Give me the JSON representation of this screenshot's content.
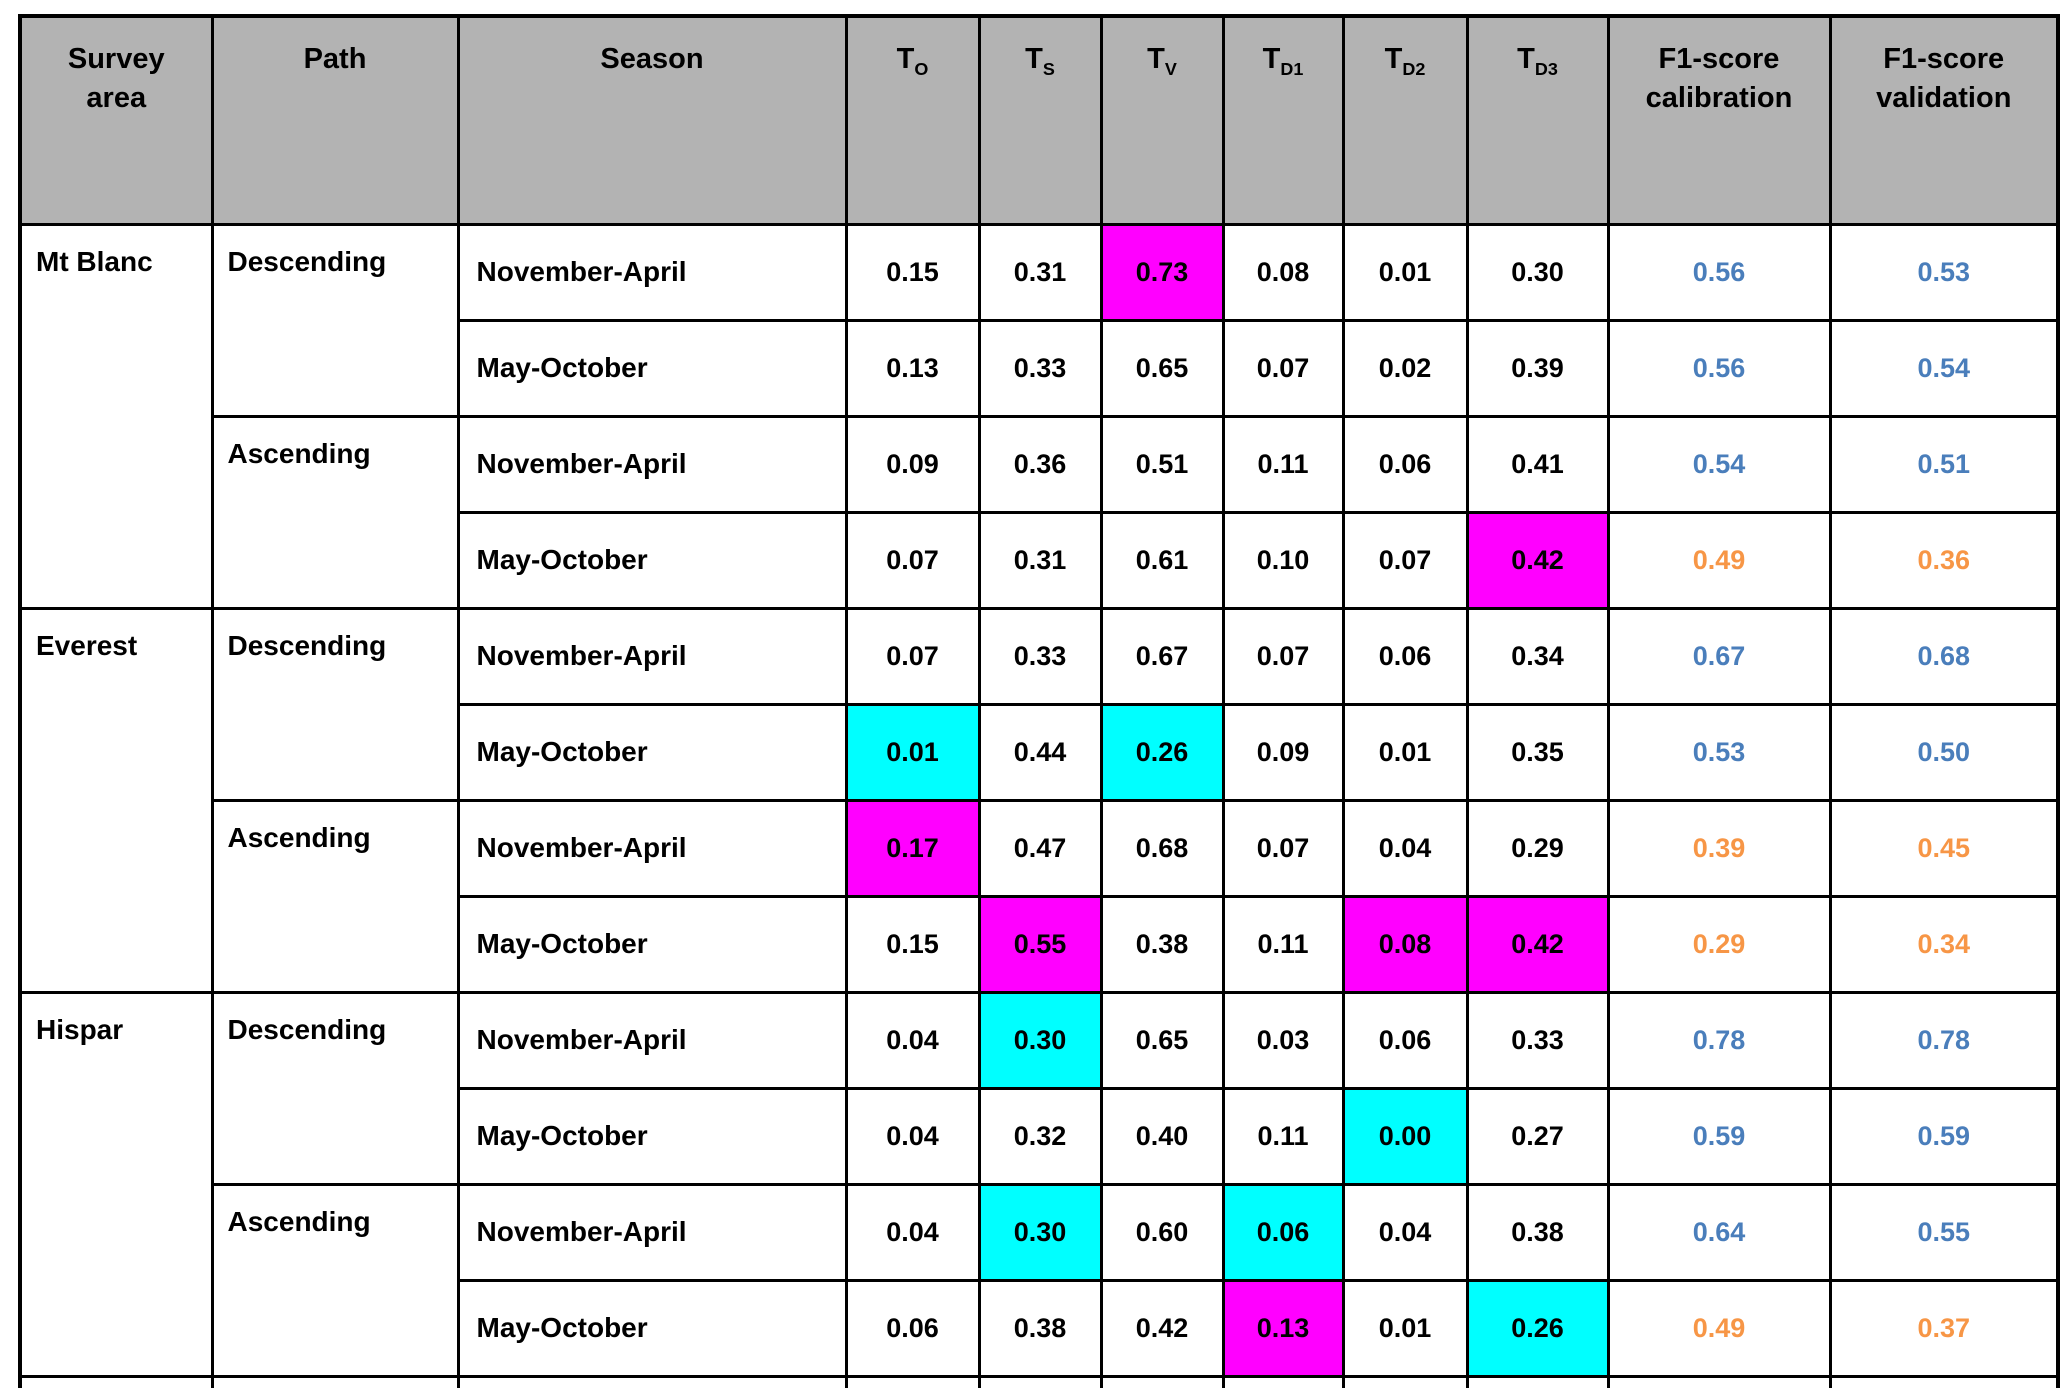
{
  "colors": {
    "header_bg": "#b3b3b3",
    "border": "#000000",
    "magenta_highlight": "#ff00ff",
    "cyan_highlight": "#00ffff",
    "f1_blue": "#4a7ebb",
    "f1_orange": "#f79646"
  },
  "table": {
    "columns": [
      {
        "name": "survey-area",
        "label": "Survey area"
      },
      {
        "name": "path",
        "label": "Path"
      },
      {
        "name": "season",
        "label": "Season"
      },
      {
        "name": "t-o",
        "base": "T",
        "sub": "O"
      },
      {
        "name": "t-s",
        "base": "T",
        "sub": "S"
      },
      {
        "name": "t-v",
        "base": "T",
        "sub": "V"
      },
      {
        "name": "t-d1",
        "base": "T",
        "sub": "D1"
      },
      {
        "name": "t-d2",
        "base": "T",
        "sub": "D2"
      },
      {
        "name": "t-d3",
        "base": "T",
        "sub": "D3"
      },
      {
        "name": "f1-calibration",
        "label": "F1-score calibration"
      },
      {
        "name": "f1-validation",
        "label": "F1-score validation"
      }
    ],
    "rows": [
      {
        "area": "Mt Blanc",
        "area_span": 4,
        "path": "Descending",
        "path_span": 2,
        "season": "November-April",
        "values": [
          "0.15",
          "0.31",
          "0.73",
          "0.08",
          "0.01",
          "0.30"
        ],
        "highlights": [
          null,
          null,
          "magenta",
          null,
          null,
          null
        ],
        "f1_cal": "0.56",
        "f1_val": "0.53",
        "f1_color": "blue"
      },
      {
        "season": "May-October",
        "values": [
          "0.13",
          "0.33",
          "0.65",
          "0.07",
          "0.02",
          "0.39"
        ],
        "highlights": [
          null,
          null,
          null,
          null,
          null,
          null
        ],
        "f1_cal": "0.56",
        "f1_val": "0.54",
        "f1_color": "blue"
      },
      {
        "path": "Ascending",
        "path_span": 2,
        "season": "November-April",
        "values": [
          "0.09",
          "0.36",
          "0.51",
          "0.11",
          "0.06",
          "0.41"
        ],
        "highlights": [
          null,
          null,
          null,
          null,
          null,
          null
        ],
        "f1_cal": "0.54",
        "f1_val": "0.51",
        "f1_color": "blue"
      },
      {
        "season": "May-October",
        "values": [
          "0.07",
          "0.31",
          "0.61",
          "0.10",
          "0.07",
          "0.42"
        ],
        "highlights": [
          null,
          null,
          null,
          null,
          null,
          "magenta"
        ],
        "f1_cal": "0.49",
        "f1_val": "0.36",
        "f1_color": "orange"
      },
      {
        "area": "Everest",
        "area_span": 4,
        "path": "Descending",
        "path_span": 2,
        "season": "November-April",
        "values": [
          "0.07",
          "0.33",
          "0.67",
          "0.07",
          "0.06",
          "0.34"
        ],
        "highlights": [
          null,
          null,
          null,
          null,
          null,
          null
        ],
        "f1_cal": "0.67",
        "f1_val": "0.68",
        "f1_color": "blue"
      },
      {
        "season": "May-October",
        "values": [
          "0.01",
          "0.44",
          "0.26",
          "0.09",
          "0.01",
          "0.35"
        ],
        "highlights": [
          "cyan",
          null,
          "cyan",
          null,
          null,
          null
        ],
        "f1_cal": "0.53",
        "f1_val": "0.50",
        "f1_color": "blue"
      },
      {
        "path": "Ascending",
        "path_span": 2,
        "season": "November-April",
        "values": [
          "0.17",
          "0.47",
          "0.68",
          "0.07",
          "0.04",
          "0.29"
        ],
        "highlights": [
          "magenta",
          null,
          null,
          null,
          null,
          null
        ],
        "f1_cal": "0.39",
        "f1_val": "0.45",
        "f1_color": "orange"
      },
      {
        "season": "May-October",
        "values": [
          "0.15",
          "0.55",
          "0.38",
          "0.11",
          "0.08",
          "0.42"
        ],
        "highlights": [
          null,
          "magenta",
          null,
          null,
          "magenta",
          "magenta"
        ],
        "f1_cal": "0.29",
        "f1_val": "0.34",
        "f1_color": "orange"
      },
      {
        "area": "Hispar",
        "area_span": 4,
        "path": "Descending",
        "path_span": 2,
        "season": "November-April",
        "values": [
          "0.04",
          "0.30",
          "0.65",
          "0.03",
          "0.06",
          "0.33"
        ],
        "highlights": [
          null,
          "cyan",
          null,
          null,
          null,
          null
        ],
        "f1_cal": "0.78",
        "f1_val": "0.78",
        "f1_color": "blue"
      },
      {
        "season": "May-October",
        "values": [
          "0.04",
          "0.32",
          "0.40",
          "0.11",
          "0.00",
          "0.27"
        ],
        "highlights": [
          null,
          null,
          null,
          null,
          "cyan",
          null
        ],
        "f1_cal": "0.59",
        "f1_val": "0.59",
        "f1_color": "blue"
      },
      {
        "path": "Ascending",
        "path_span": 2,
        "season": "November-April",
        "values": [
          "0.04",
          "0.30",
          "0.60",
          "0.06",
          "0.04",
          "0.38"
        ],
        "highlights": [
          null,
          "cyan",
          null,
          "cyan",
          null,
          null
        ],
        "f1_cal": "0.64",
        "f1_val": "0.55",
        "f1_color": "blue"
      },
      {
        "season": "May-October",
        "values": [
          "0.06",
          "0.38",
          "0.42",
          "0.13",
          "0.01",
          "0.26"
        ],
        "highlights": [
          null,
          null,
          null,
          "magenta",
          null,
          "cyan"
        ],
        "f1_cal": "0.49",
        "f1_val": "0.37",
        "f1_color": "orange"
      }
    ]
  }
}
